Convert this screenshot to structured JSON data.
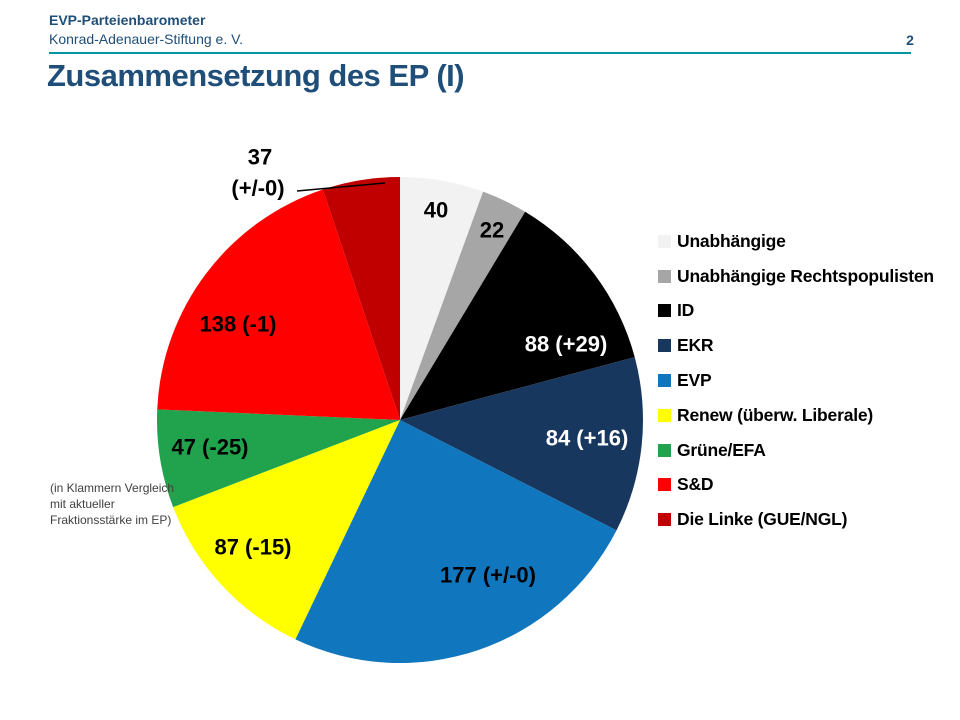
{
  "header": {
    "brand": "EVP-Parteienbarometer",
    "org": "Konrad-Adenauer-Stiftung e. V.",
    "page_number": "2"
  },
  "title": "Zusammensetzung des EP (I)",
  "note": {
    "lines": [
      "(in Klammern Vergleich",
      "mit aktueller",
      "Fraktionsstärke im EP)"
    ]
  },
  "colors": {
    "header_text": "#1F4E79",
    "accent_line": "#0097A0"
  },
  "chart_data": {
    "type": "pie",
    "title": "Zusammensetzung des EP (I)",
    "total": 720,
    "start_angle_deg": 0,
    "direction": "clockwise",
    "legend_position": "right",
    "categories": [
      "Unabhängige",
      "Unabhängige Rechtspopulisten",
      "ID",
      "EKR",
      "EVP",
      "Renew (überw. Liberale)",
      "Grüne/EFA",
      "S&D",
      "Die Linke (GUE/NGL)"
    ],
    "values": [
      40,
      22,
      88,
      84,
      177,
      87,
      47,
      138,
      37
    ],
    "labels": [
      "40",
      "22",
      "88 (+29)",
      "84 (+16)",
      "177 (+/-0)",
      "87 (-15)",
      "47 (-25)",
      "138 (-1)",
      "37 (+/-0)"
    ],
    "colors": [
      "#F2F2F2",
      "#A6A6A6",
      "#000000",
      "#17375E",
      "#1076BE",
      "#FFFF00",
      "#21A34D",
      "#FF0000",
      "#C00000"
    ],
    "label_text_colors": [
      "#000000",
      "#000000",
      "#FFFFFF",
      "#FFFFFF",
      "#000000",
      "#000000",
      "#000000",
      "#000000",
      "#000000"
    ]
  }
}
